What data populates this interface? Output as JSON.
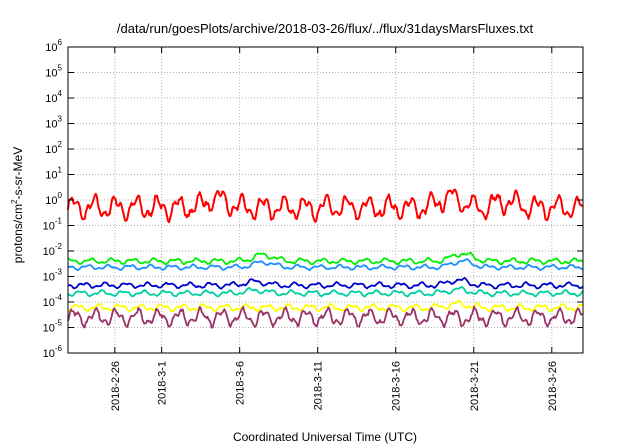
{
  "chart_data": {
    "type": "line",
    "title": "/data/run/goesPlots/archive/2018-03-26/flux/../flux/31daysMarsFluxes.txt",
    "xlabel": "Coordinated Universal Time (UTC)",
    "ylabel_base": "protons/cm",
    "ylabel_exp": "2",
    "ylabel_rest": "-s-sr-MeV",
    "y_scale": "log",
    "ylim": [
      1e-06,
      1000000.0
    ],
    "xlim": [
      "2018-02-23",
      "2018-03-28"
    ],
    "grid": true,
    "y_ticks": [
      {
        "base": "10",
        "exp": "-6"
      },
      {
        "base": "10",
        "exp": "-5"
      },
      {
        "base": "10",
        "exp": "-4"
      },
      {
        "base": "10",
        "exp": "-3"
      },
      {
        "base": "10",
        "exp": "-2"
      },
      {
        "base": "10",
        "exp": "-1"
      },
      {
        "base": "10",
        "exp": "0"
      },
      {
        "base": "10",
        "exp": "1"
      },
      {
        "base": "10",
        "exp": "2"
      },
      {
        "base": "10",
        "exp": "3"
      },
      {
        "base": "10",
        "exp": "4"
      },
      {
        "base": "10",
        "exp": "5"
      },
      {
        "base": "10",
        "exp": "6"
      }
    ],
    "x_ticks": [
      {
        "label": "2018-2-26",
        "date": "2018-02-26"
      },
      {
        "label": "2018-3-1",
        "date": "2018-03-01"
      },
      {
        "label": "2018-3-6",
        "date": "2018-03-06"
      },
      {
        "label": "2018-3-11",
        "date": "2018-03-11"
      },
      {
        "label": "2018-3-16",
        "date": "2018-03-16"
      },
      {
        "label": "2018-3-21",
        "date": "2018-03-21"
      },
      {
        "label": "2018-3-26",
        "date": "2018-03-26"
      }
    ],
    "series": [
      {
        "color": "#ff0000",
        "level": 0.5,
        "amp": 0.34,
        "bumps": [
          [
            "2018-03-04T12:00",
            0.35
          ],
          [
            "2018-03-19T12:00",
            0.45
          ],
          [
            "2018-03-23T00:00",
            0.25
          ]
        ]
      },
      {
        "color": "#00ee00",
        "level": 0.004,
        "amp": 0.08,
        "bumps": [
          [
            "2018-03-07T12:00",
            0.25
          ],
          [
            "2018-03-20T06:00",
            0.3
          ]
        ]
      },
      {
        "color": "#1e90ff",
        "level": 0.0023,
        "amp": 0.07,
        "bumps": [
          [
            "2018-03-07T12:00",
            0.2
          ],
          [
            "2018-03-20T06:00",
            0.25
          ]
        ]
      },
      {
        "color": "#0000cc",
        "level": 0.00045,
        "amp": 0.08,
        "bumps": [
          [
            "2018-03-07T00:00",
            0.15
          ],
          [
            "2018-03-20T00:00",
            0.2
          ]
        ]
      },
      {
        "color": "#00d0a0",
        "level": 0.00022,
        "amp": 0.08,
        "bumps": [
          [
            "2018-03-07T00:00",
            0.12
          ],
          [
            "2018-03-20T00:00",
            0.15
          ]
        ]
      },
      {
        "color": "#ffff00",
        "level": 6e-05,
        "amp": 0.1,
        "bumps": [
          [
            "2018-03-20T00:00",
            0.15
          ]
        ]
      },
      {
        "color": "#993366",
        "level": 2.5e-05,
        "amp": 0.25,
        "bumps": []
      }
    ]
  }
}
